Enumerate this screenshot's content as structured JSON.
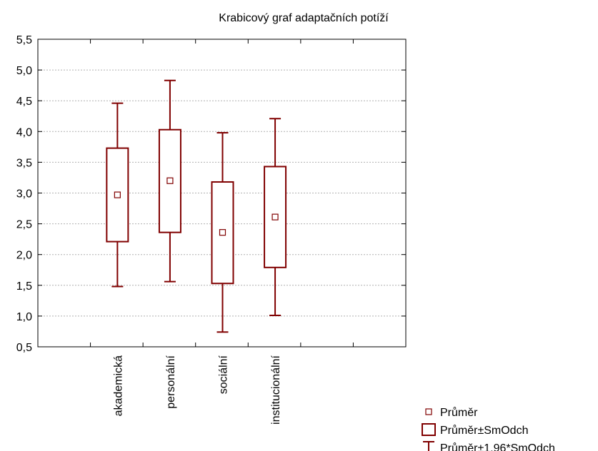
{
  "chart_data": {
    "type": "box",
    "title": "Krabicový graf adaptačních potíží",
    "categories": [
      "akademická",
      "personální",
      "sociální",
      "institucionální"
    ],
    "series": [
      {
        "name": "Průměr",
        "values": [
          2.97,
          3.2,
          2.36,
          2.61
        ]
      }
    ],
    "box_low": [
      2.21,
      2.36,
      1.53,
      1.79
    ],
    "box_high": [
      3.73,
      4.03,
      3.18,
      3.43
    ],
    "whisker_low": [
      1.48,
      1.56,
      0.74,
      1.01
    ],
    "whisker_high": [
      4.46,
      4.83,
      3.98,
      4.21
    ],
    "ylim": [
      0.5,
      5.5
    ],
    "yticks": [
      "0,5",
      "1,0",
      "1,5",
      "2,0",
      "2,5",
      "3,0",
      "3,5",
      "4,0",
      "4,5",
      "5,0",
      "5,5"
    ],
    "grid": true,
    "legend_position": "bottom-right",
    "color": "#800000",
    "legend": [
      {
        "symbol": "square-marker",
        "label": "Průměr"
      },
      {
        "symbol": "box",
        "label": "Průměr±SmOdch"
      },
      {
        "symbol": "whisker",
        "label": "Průměr±1,96*SmOdch"
      }
    ]
  }
}
